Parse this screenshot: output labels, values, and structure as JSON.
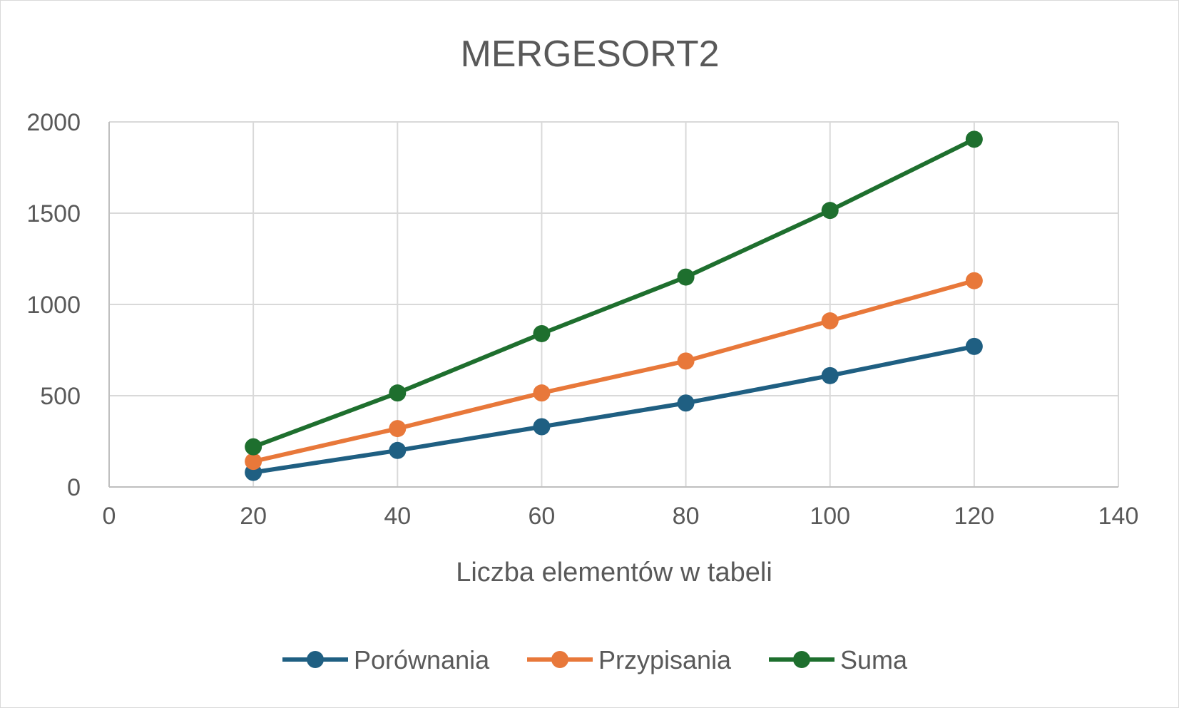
{
  "chart_data": {
    "type": "line",
    "title": "MERGESORT2",
    "xlabel": "Liczba elementów w tabeli",
    "ylabel": "",
    "xlim": [
      0,
      140
    ],
    "ylim": [
      0,
      2000
    ],
    "x_ticks": [
      0,
      20,
      40,
      60,
      80,
      100,
      120,
      140
    ],
    "y_ticks": [
      0,
      500,
      1000,
      1500,
      2000
    ],
    "x_tick_labels": [
      "0",
      "20",
      "40",
      "60",
      "80",
      "100",
      "120",
      "140"
    ],
    "y_tick_labels": [
      "0",
      "500",
      "1000",
      "1500",
      "2000"
    ],
    "grid": true,
    "legend_position": "bottom",
    "series": [
      {
        "name": "Porównania",
        "color": "#1f5f82",
        "x": [
          20,
          40,
          60,
          80,
          100,
          120
        ],
        "values": [
          80,
          200,
          330,
          460,
          610,
          770
        ]
      },
      {
        "name": "Przypisania",
        "color": "#e8783a",
        "x": [
          20,
          40,
          60,
          80,
          100,
          120
        ],
        "values": [
          140,
          320,
          515,
          690,
          910,
          1130
        ]
      },
      {
        "name": "Suma",
        "color": "#1e6f2e",
        "x": [
          20,
          40,
          60,
          80,
          100,
          120
        ],
        "values": [
          220,
          515,
          840,
          1150,
          1515,
          1905
        ]
      }
    ]
  }
}
